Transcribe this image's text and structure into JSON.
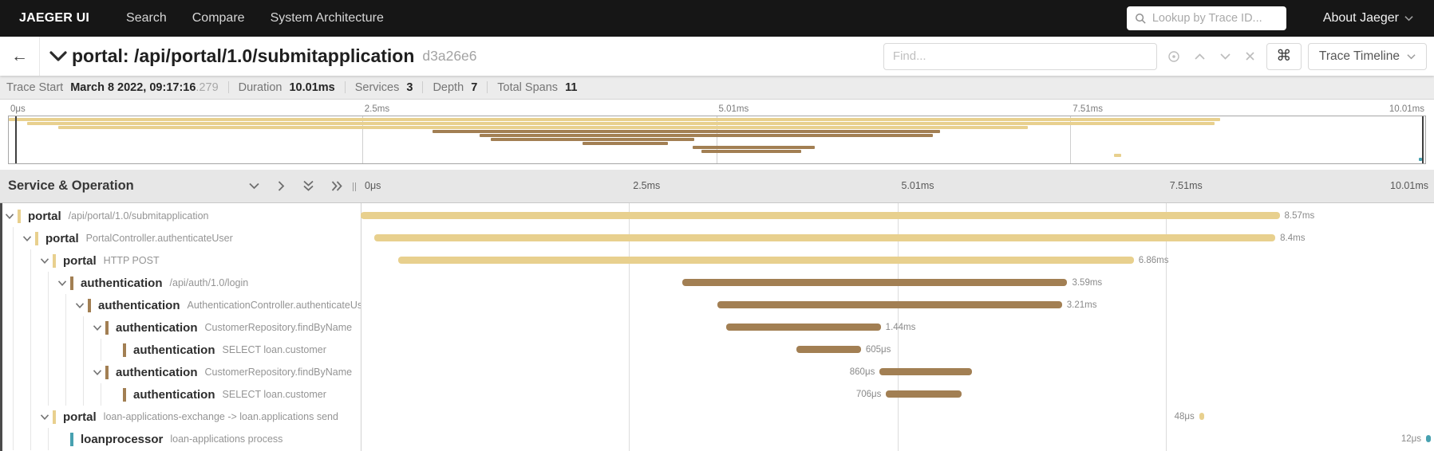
{
  "colors": {
    "nav_bg": "#161616",
    "portal": "#e8d08e",
    "auth": "#a27f53",
    "loanprocessor": "#47a1b0"
  },
  "nav": {
    "brand": "JAEGER UI",
    "items": [
      "Search",
      "Compare",
      "System Architecture"
    ],
    "lookup_placeholder": "Lookup by Trace ID...",
    "about_label": "About Jaeger"
  },
  "trace_header": {
    "back_arrow": "←",
    "title": "portal: /api/portal/1.0/submitapplication",
    "trace_id": "d3a26e6",
    "find_placeholder": "Find...",
    "shortcut_key": "⌘",
    "view_selector_label": "Trace Timeline"
  },
  "stats": {
    "items": [
      {
        "label": "Trace Start",
        "value": "March 8 2022, 09:17:16",
        "suffix": ".279"
      },
      {
        "label": "Duration",
        "value": "10.01ms",
        "suffix": ""
      },
      {
        "label": "Services",
        "value": "3",
        "suffix": ""
      },
      {
        "label": "Depth",
        "value": "7",
        "suffix": ""
      },
      {
        "label": "Total Spans",
        "value": "11",
        "suffix": ""
      }
    ]
  },
  "timeline": {
    "column_header": "Service & Operation",
    "total_ms": 10.01,
    "ticks": [
      {
        "label": "0μs",
        "pos": 0
      },
      {
        "label": "2.5ms",
        "pos": 25
      },
      {
        "label": "5.01ms",
        "pos": 50
      },
      {
        "label": "7.51ms",
        "pos": 75
      },
      {
        "label": "10.01ms",
        "pos": 100
      }
    ]
  },
  "spans": [
    {
      "service": "portal",
      "operation": "/api/portal/1.0/submitapplication",
      "depth": 0,
      "has_children": true,
      "color": "portal",
      "start_ms": 0.0,
      "duration_ms": 8.57,
      "duration_label": "8.57ms",
      "label_side": "right"
    },
    {
      "service": "portal",
      "operation": "PortalController.authenticateUser",
      "depth": 1,
      "has_children": true,
      "color": "portal",
      "start_ms": 0.13,
      "duration_ms": 8.4,
      "duration_label": "8.4ms",
      "label_side": "right"
    },
    {
      "service": "portal",
      "operation": "HTTP POST",
      "depth": 2,
      "has_children": true,
      "color": "portal",
      "start_ms": 0.35,
      "duration_ms": 6.86,
      "duration_label": "6.86ms",
      "label_side": "right"
    },
    {
      "service": "authentication",
      "operation": "/api/auth/1.0/login",
      "depth": 3,
      "has_children": true,
      "color": "auth",
      "start_ms": 3.0,
      "duration_ms": 3.59,
      "duration_label": "3.59ms",
      "label_side": "right"
    },
    {
      "service": "authentication",
      "operation": "AuthenticationController.authenticateUser",
      "depth": 4,
      "has_children": true,
      "color": "auth",
      "start_ms": 3.33,
      "duration_ms": 3.21,
      "duration_label": "3.21ms",
      "label_side": "right"
    },
    {
      "service": "authentication",
      "operation": "CustomerRepository.findByName",
      "depth": 5,
      "has_children": true,
      "color": "auth",
      "start_ms": 3.41,
      "duration_ms": 1.44,
      "duration_label": "1.44ms",
      "label_side": "right"
    },
    {
      "service": "authentication",
      "operation": "SELECT loan.customer",
      "depth": 6,
      "has_children": false,
      "color": "auth",
      "start_ms": 4.06,
      "duration_ms": 0.605,
      "duration_label": "605μs",
      "label_side": "right"
    },
    {
      "service": "authentication",
      "operation": "CustomerRepository.findByName",
      "depth": 5,
      "has_children": true,
      "color": "auth",
      "start_ms": 4.84,
      "duration_ms": 0.86,
      "duration_label": "860μs",
      "label_side": "left"
    },
    {
      "service": "authentication",
      "operation": "SELECT loan.customer",
      "depth": 6,
      "has_children": false,
      "color": "auth",
      "start_ms": 4.9,
      "duration_ms": 0.706,
      "duration_label": "706μs",
      "label_side": "left"
    },
    {
      "service": "portal",
      "operation": "loan-applications-exchange -> loan.applications send",
      "depth": 2,
      "has_children": true,
      "color": "portal",
      "start_ms": 7.82,
      "duration_ms": 0.048,
      "duration_label": "48μs",
      "label_side": "left"
    },
    {
      "service": "loanprocessor",
      "operation": "loan-applications process",
      "depth": 3,
      "has_children": false,
      "color": "loanprocessor",
      "start_ms": 9.99,
      "duration_ms": 0.012,
      "duration_label": "12μs",
      "label_side": "left"
    }
  ]
}
